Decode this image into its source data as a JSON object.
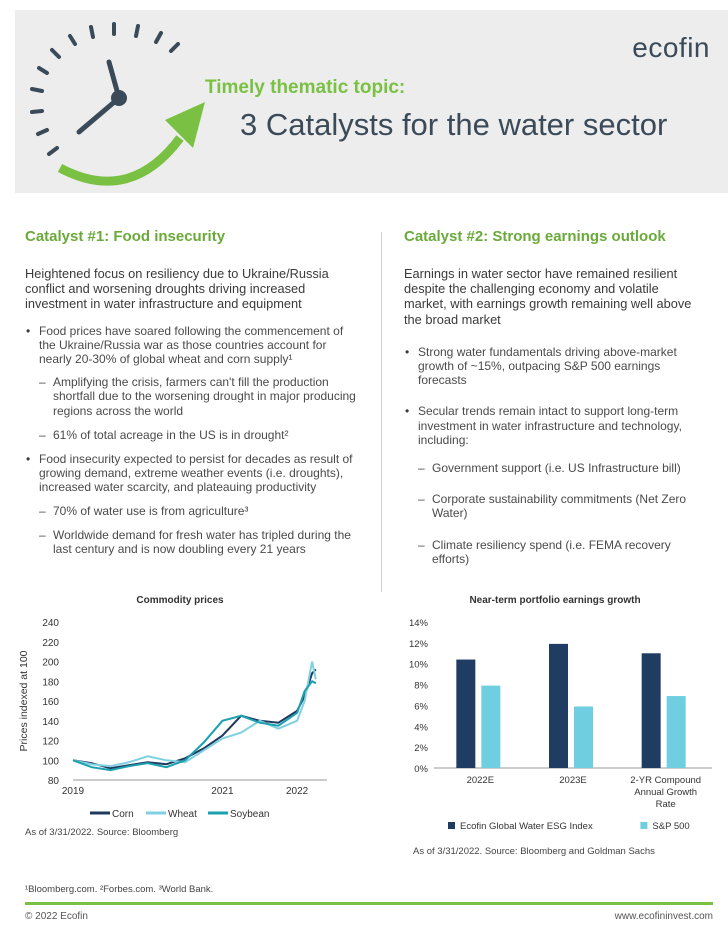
{
  "header": {
    "kicker": "Timely thematic topic:",
    "headline": "3 Catalysts for the water sector",
    "logo": "ecofin"
  },
  "left": {
    "heading": "Catalyst #1: Food insecurity",
    "lead": "Heightened focus on resiliency due to Ukraine/Russia conflict and worsening droughts driving increased investment in water infrastructure and equipment",
    "bullets": [
      {
        "text": "Food prices have soared following the commencement of the Ukraine/Russia war as those countries account for nearly 20-30% of global wheat and corn supply¹",
        "subs": [
          "Amplifying the crisis, farmers can't fill the production shortfall due to the worsening drought in major producing regions across the world",
          "61% of total acreage in the US is in drought²"
        ]
      },
      {
        "text": "Food insecurity expected to persist for decades as result of growing demand, extreme weather events (i.e. droughts), increased water scarcity, and plateauing productivity",
        "subs": [
          "70% of water use is from agriculture³",
          "Worldwide demand for fresh water has tripled during the last century and is now doubling every 21 years"
        ]
      }
    ]
  },
  "right": {
    "heading": "Catalyst #2: Strong earnings outlook",
    "lead": "Earnings in water sector have remained resilient despite the challenging economy and volatile market, with earnings growth remaining well above the broad market",
    "bullets": [
      {
        "text": "Strong water fundamentals driving above-market growth of ~15%, outpacing S&P 500 earnings forecasts",
        "subs": []
      },
      {
        "text": "Secular trends remain intact to support long-term investment in water infrastructure and technology, including:",
        "subs": [
          "Government support (i.e. US Infrastructure bill)",
          "Corporate sustainability commitments (Net Zero Water)",
          "Climate resiliency spend (i.e. FEMA recovery efforts)"
        ]
      }
    ]
  },
  "chart_data": [
    {
      "type": "line",
      "title": "Commodity prices",
      "ylabel": "Prices indexed at 100",
      "ylim": [
        80,
        240
      ],
      "yticks": [
        80,
        100,
        120,
        140,
        160,
        180,
        200,
        220,
        240
      ],
      "xticks": [
        "2019",
        "2021",
        "2022"
      ],
      "x": [
        2019.0,
        2019.25,
        2019.5,
        2019.75,
        2020.0,
        2020.25,
        2020.5,
        2020.75,
        2021.0,
        2021.25,
        2021.5,
        2021.75,
        2022.0,
        2022.1,
        2022.2,
        2022.25
      ],
      "series": [
        {
          "name": "Corn",
          "color": "#1f3a5f",
          "values": [
            100,
            97,
            92,
            95,
            98,
            96,
            102,
            112,
            125,
            145,
            140,
            138,
            150,
            165,
            188,
            192
          ]
        },
        {
          "name": "Wheat",
          "color": "#7fd0e0",
          "values": [
            100,
            96,
            94,
            98,
            104,
            100,
            98,
            110,
            122,
            128,
            140,
            132,
            140,
            160,
            200,
            182
          ]
        },
        {
          "name": "Soybean",
          "color": "#1aa0b0",
          "values": [
            100,
            93,
            90,
            94,
            97,
            93,
            100,
            118,
            140,
            145,
            138,
            135,
            148,
            170,
            180,
            178
          ]
        }
      ],
      "source": "As of 3/31/2022. Source: Bloomberg"
    },
    {
      "type": "bar",
      "title": "Near-term portfolio earnings growth",
      "categories": [
        "2022E",
        "2023E",
        "2-YR Compound Annual Growth Rate"
      ],
      "ylim": [
        0,
        14
      ],
      "yticks": [
        "0%",
        "2%",
        "4%",
        "6%",
        "8%",
        "10%",
        "12%",
        "14%"
      ],
      "series": [
        {
          "name": "Ecofin Global Water ESG Index",
          "color": "#1f3d63",
          "values": [
            10.4,
            11.9,
            11.0
          ]
        },
        {
          "name": "S&P 500",
          "color": "#6fcfe0",
          "values": [
            7.9,
            5.9,
            6.9
          ]
        }
      ],
      "source": "As of 3/31/2022. Source: Bloomberg and Goldman Sachs"
    }
  ],
  "footer": {
    "footnotes": "¹Bloomberg.com. ²Forbes.com. ³World Bank.",
    "copyright": "© 2022 Ecofin",
    "url": "www.ecofininvest.com"
  }
}
